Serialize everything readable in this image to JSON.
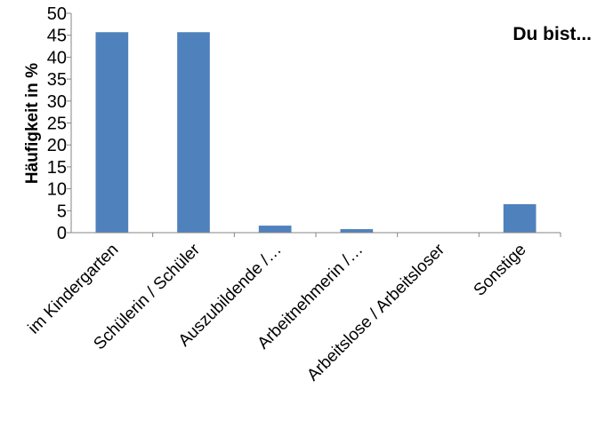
{
  "chart_data": {
    "type": "bar",
    "title": "Du bist...",
    "xlabel": "",
    "ylabel": "Häufigkeit in %",
    "ylim": [
      0,
      50
    ],
    "yticks": [
      "0",
      "5",
      "10",
      "15",
      "20",
      "25",
      "30",
      "35",
      "40",
      "45",
      "50"
    ],
    "categories": [
      "im Kindergarten",
      "Schülerin / Schüler",
      "Auszubildende /…",
      "Arbeitnehmerin /…",
      "Arbeitslose / Arbeitsloser",
      "Sonstige"
    ],
    "values": [
      45.7,
      45.7,
      1.6,
      0.8,
      0,
      6.5
    ],
    "bar_color": "#4F81BD",
    "grid": false,
    "legend": "none"
  }
}
